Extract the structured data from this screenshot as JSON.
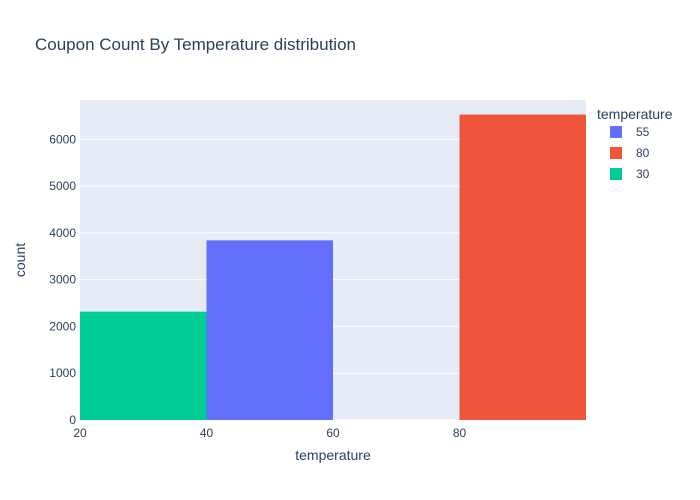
{
  "chart_data": {
    "type": "bar",
    "title": "Coupon Count By Temperature distribution",
    "xlabel": "temperature",
    "ylabel": "count",
    "xlim": [
      20,
      100
    ],
    "ylim": [
      0,
      6840
    ],
    "x_ticks": [
      20,
      40,
      60,
      80
    ],
    "y_ticks": [
      0,
      1000,
      2000,
      3000,
      4000,
      5000,
      6000
    ],
    "grid": true,
    "legend": {
      "title": "temperature",
      "placement": "right",
      "entries": [
        "55",
        "80",
        "30"
      ]
    },
    "series": [
      {
        "name": "55",
        "bin_start": 40,
        "bin_end": 60,
        "value": 3840,
        "color": "#636efa"
      },
      {
        "name": "80",
        "bin_start": 80,
        "bin_end": 100,
        "value": 6528,
        "color": "#ef553b"
      },
      {
        "name": "30",
        "bin_start": 20,
        "bin_end": 40,
        "value": 2316,
        "color": "#00cc96"
      }
    ],
    "plot_background": "#e5ecf6"
  }
}
